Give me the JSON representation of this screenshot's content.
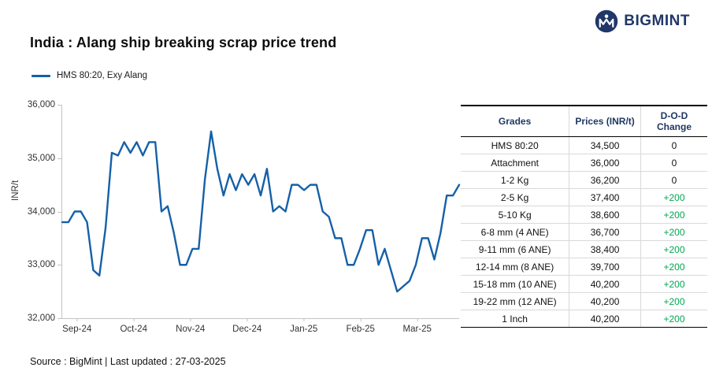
{
  "logo": {
    "brand": "BIGMINT"
  },
  "title": "India : Alang ship breaking scrap price trend",
  "legend": {
    "label": "HMS 80:20, Exy Alang"
  },
  "chart_data": {
    "type": "line",
    "title": "India : Alang ship breaking scrap price trend",
    "xlabel": "",
    "ylabel": "INR/t",
    "ylim": [
      32000,
      36000
    ],
    "y_ticks": [
      36000,
      35000,
      34000,
      33000,
      32000
    ],
    "y_tick_labels": [
      "36,000",
      "35,000",
      "34,000",
      "33,000",
      "32,000"
    ],
    "x_ticks": [
      "Sep-24",
      "Oct-24",
      "Nov-24",
      "Dec-24",
      "Jan-25",
      "Feb-25",
      "Mar-25"
    ],
    "grid": false,
    "legend_position": "top-left",
    "line_color": "#1560a8",
    "series": [
      {
        "name": "HMS 80:20, Exy Alang",
        "values": [
          33800,
          33800,
          34000,
          34000,
          33800,
          32900,
          32800,
          33700,
          35100,
          35050,
          35300,
          35100,
          35300,
          35050,
          35300,
          35300,
          34000,
          34100,
          33600,
          33000,
          33000,
          33300,
          33300,
          34600,
          35500,
          34800,
          34300,
          34700,
          34400,
          34700,
          34500,
          34700,
          34300,
          34800,
          34000,
          34100,
          34000,
          34500,
          34500,
          34400,
          34500,
          34500,
          34000,
          33900,
          33500,
          33500,
          33000,
          33000,
          33300,
          33650,
          33650,
          33000,
          33300,
          32900,
          32500,
          32600,
          32700,
          33000,
          33500,
          33500,
          33100,
          33600,
          34300,
          34300,
          34500
        ]
      }
    ]
  },
  "table": {
    "headers": [
      "Grades",
      "Prices (INR/t)",
      "D-O-D Change"
    ],
    "rows": [
      {
        "grade": "HMS 80:20",
        "price": "34,500",
        "change": "0"
      },
      {
        "grade": "Attachment",
        "price": "36,000",
        "change": "0"
      },
      {
        "grade": "1-2 Kg",
        "price": "36,200",
        "change": "0"
      },
      {
        "grade": "2-5 Kg",
        "price": "37,400",
        "change": "+200"
      },
      {
        "grade": "5-10 Kg",
        "price": "38,600",
        "change": "+200"
      },
      {
        "grade": "6-8 mm (4 ANE)",
        "price": "36,700",
        "change": "+200"
      },
      {
        "grade": "9-11 mm (6 ANE)",
        "price": "38,400",
        "change": "+200"
      },
      {
        "grade": "12-14 mm (8 ANE)",
        "price": "39,700",
        "change": "+200"
      },
      {
        "grade": "15-18 mm (10 ANE)",
        "price": "40,200",
        "change": "+200"
      },
      {
        "grade": "19-22 mm (12 ANE)",
        "price": "40,200",
        "change": "+200"
      },
      {
        "grade": "1 Inch",
        "price": "40,200",
        "change": "+200"
      }
    ]
  },
  "colors": {
    "accent_blue": "#1560a8",
    "navy": "#1f3864",
    "positive_green": "#00a651"
  },
  "footer": {
    "text": "Source : BigMint | Last updated : 27-03-2025"
  }
}
